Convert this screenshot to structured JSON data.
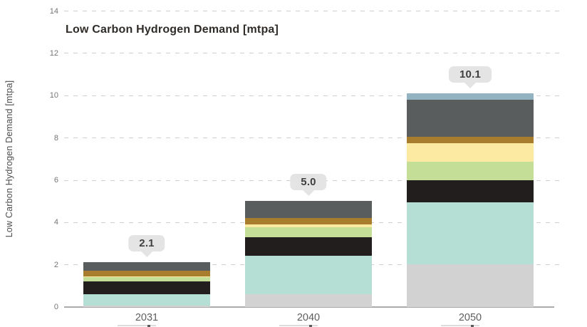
{
  "title": "Low Carbon Hydrogen Demand [mtpa]",
  "y_axis_label": "Low Carbon Hydrogen Demand [mtpa]",
  "chart_data": {
    "type": "bar",
    "stacked": true,
    "title": "Low Carbon Hydrogen Demand [mtpa]",
    "xlabel": "",
    "ylabel": "Low Carbon Hydrogen Demand [mtpa]",
    "categories": [
      "2031",
      "2040",
      "2050"
    ],
    "total_labels": [
      "2.1",
      "5.0",
      "10.1"
    ],
    "totals": [
      2.1,
      5.0,
      10.1
    ],
    "ylim": [
      0,
      14
    ],
    "yticks": [
      0,
      2,
      4,
      6,
      8,
      10,
      12,
      14
    ],
    "grid": "horizontal-dashed",
    "legend_position": "none",
    "series": [
      {
        "name": "light-gray-segment",
        "color": "#d2d2d3",
        "values": [
          0.05,
          0.6,
          2.0
        ]
      },
      {
        "name": "mint-teal-segment",
        "color": "#b5dfd4",
        "values": [
          0.55,
          1.8,
          2.95
        ]
      },
      {
        "name": "black-segment",
        "color": "#221e1d",
        "values": [
          0.6,
          0.9,
          1.05
        ]
      },
      {
        "name": "light-green-segment",
        "color": "#c4dd97",
        "values": [
          0.2,
          0.45,
          0.85
        ]
      },
      {
        "name": "pale-yellow-segment",
        "color": "#fce9a2",
        "values": [
          0.05,
          0.15,
          0.9
        ]
      },
      {
        "name": "ochre-brown-segment",
        "color": "#a87d2e",
        "values": [
          0.25,
          0.3,
          0.3
        ]
      },
      {
        "name": "dark-gray-segment",
        "color": "#595d5e",
        "values": [
          0.4,
          0.8,
          1.75
        ]
      },
      {
        "name": "steel-blue-segment",
        "color": "#93b3c0",
        "values": [
          0.0,
          0.0,
          0.3
        ]
      }
    ],
    "colors": {
      "grid": "#cfcfcf",
      "axis": "#ababab",
      "callout_bg": "#e4e4e4",
      "callout_text": "#3f3f3f"
    }
  }
}
